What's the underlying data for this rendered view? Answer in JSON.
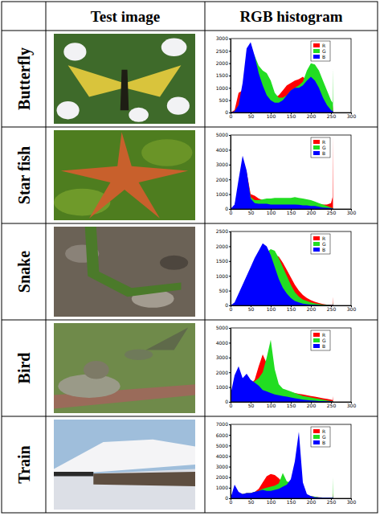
{
  "table": {
    "columns": [
      "Test image",
      "RGB histogram"
    ],
    "rows": [
      "Butterfly",
      "Star fish",
      "Snake",
      "Bird",
      "Train"
    ]
  },
  "chart_data": [
    {
      "type": "area",
      "legend": "upper right",
      "x": [
        0,
        10,
        20,
        30,
        40,
        50,
        60,
        70,
        80,
        90,
        100,
        110,
        120,
        130,
        140,
        150,
        160,
        170,
        180,
        190,
        200,
        210,
        220,
        230,
        240,
        250,
        254,
        255
      ],
      "xlim": [
        0,
        300
      ],
      "xticks": [
        0,
        50,
        100,
        150,
        200,
        250,
        300
      ],
      "ylim": [
        0,
        3000
      ],
      "yticks": [
        0,
        500,
        1000,
        1500,
        2000,
        2500,
        3000
      ],
      "series": [
        {
          "name": "R",
          "color": "#ff0000",
          "values": [
            0,
            100,
            800,
            900,
            1600,
            2200,
            1800,
            1500,
            1200,
            900,
            700,
            600,
            700,
            900,
            1100,
            1200,
            1300,
            1350,
            1450,
            1300,
            1100,
            900,
            700,
            500,
            350,
            200,
            150,
            300
          ]
        },
        {
          "name": "G",
          "color": "#22dd22",
          "values": [
            0,
            50,
            300,
            900,
            2200,
            2600,
            2300,
            1900,
            1700,
            1600,
            1300,
            800,
            600,
            600,
            700,
            900,
            1000,
            1100,
            1250,
            1700,
            2000,
            1950,
            1700,
            1300,
            900,
            500,
            400,
            1800
          ]
        },
        {
          "name": "B",
          "color": "#0000ff",
          "values": [
            0,
            50,
            300,
            1200,
            2600,
            2850,
            2300,
            1600,
            1100,
            700,
            500,
            400,
            400,
            500,
            700,
            900,
            1000,
            1000,
            1100,
            1300,
            1450,
            1300,
            1000,
            600,
            300,
            100,
            50,
            100
          ]
        }
      ]
    },
    {
      "type": "area",
      "legend": "upper right",
      "x": [
        0,
        10,
        20,
        30,
        40,
        50,
        60,
        70,
        80,
        90,
        100,
        110,
        120,
        130,
        140,
        150,
        160,
        170,
        180,
        190,
        200,
        210,
        220,
        230,
        240,
        250,
        254,
        255
      ],
      "xlim": [
        0,
        300
      ],
      "xticks": [
        0,
        50,
        100,
        150,
        200,
        250,
        300
      ],
      "ylim": [
        0,
        5000
      ],
      "yticks": [
        0,
        1000,
        2000,
        3000,
        4000,
        5000
      ],
      "series": [
        {
          "name": "R",
          "color": "#ff0000",
          "values": [
            0,
            200,
            1500,
            3000,
            2500,
            1000,
            900,
            700,
            600,
            500,
            450,
            450,
            450,
            450,
            450,
            450,
            450,
            450,
            450,
            400,
            400,
            350,
            300,
            300,
            300,
            400,
            800,
            5000
          ]
        },
        {
          "name": "G",
          "color": "#22dd22",
          "values": [
            0,
            200,
            1500,
            3200,
            2400,
            800,
            600,
            600,
            650,
            700,
            700,
            750,
            750,
            750,
            750,
            750,
            800,
            750,
            700,
            650,
            600,
            500,
            400,
            300,
            200,
            100,
            50,
            100
          ]
        },
        {
          "name": "B",
          "color": "#0000ff",
          "values": [
            0,
            300,
            2000,
            3600,
            2600,
            700,
            400,
            350,
            350,
            350,
            300,
            300,
            300,
            300,
            300,
            300,
            300,
            280,
            250,
            250,
            200,
            200,
            150,
            100,
            80,
            50,
            30,
            50
          ]
        }
      ]
    },
    {
      "type": "area",
      "legend": "upper right",
      "x": [
        0,
        10,
        20,
        30,
        40,
        50,
        60,
        70,
        80,
        90,
        100,
        110,
        120,
        130,
        140,
        150,
        160,
        170,
        180,
        190,
        200,
        210,
        220,
        230,
        240,
        250,
        254,
        255
      ],
      "xlim": [
        0,
        300
      ],
      "xticks": [
        0,
        50,
        100,
        150,
        200,
        250,
        300
      ],
      "ylim": [
        0,
        2500
      ],
      "yticks": [
        0,
        500,
        1000,
        1500,
        2000,
        2500
      ],
      "series": [
        {
          "name": "R",
          "color": "#ff0000",
          "values": [
            0,
            40,
            150,
            300,
            500,
            700,
            900,
            1100,
            1300,
            1500,
            1650,
            1700,
            1650,
            1450,
            1200,
            950,
            700,
            500,
            350,
            250,
            180,
            120,
            80,
            50,
            30,
            20,
            20,
            300
          ]
        },
        {
          "name": "G",
          "color": "#22dd22",
          "values": [
            0,
            50,
            200,
            400,
            650,
            900,
            1150,
            1400,
            1650,
            1800,
            1900,
            1850,
            1600,
            1300,
            1000,
            700,
            450,
            300,
            200,
            150,
            100,
            70,
            50,
            30,
            20,
            10,
            10,
            100
          ]
        },
        {
          "name": "B",
          "color": "#0000ff",
          "values": [
            0,
            100,
            400,
            700,
            1000,
            1300,
            1600,
            1850,
            2100,
            2000,
            1700,
            1300,
            900,
            600,
            400,
            250,
            150,
            100,
            60,
            40,
            30,
            20,
            10,
            10,
            5,
            5,
            5,
            50
          ]
        }
      ]
    },
    {
      "type": "area",
      "legend": "upper right",
      "x": [
        0,
        10,
        20,
        30,
        40,
        50,
        60,
        70,
        80,
        90,
        100,
        110,
        120,
        130,
        140,
        150,
        160,
        170,
        180,
        190,
        200,
        210,
        220,
        230,
        240,
        250,
        254,
        255
      ],
      "xlim": [
        0,
        300
      ],
      "xticks": [
        0,
        50,
        100,
        150,
        200,
        250,
        300
      ],
      "ylim": [
        0,
        5000
      ],
      "yticks": [
        0,
        1000,
        2000,
        3000,
        4000,
        5000
      ],
      "series": [
        {
          "name": "R",
          "color": "#ff0000",
          "values": [
            200,
            500,
            700,
            800,
            1000,
            1200,
            1500,
            2400,
            3200,
            2600,
            1800,
            1300,
            1000,
            800,
            700,
            650,
            600,
            550,
            500,
            450,
            400,
            350,
            300,
            250,
            200,
            150,
            120,
            400
          ]
        },
        {
          "name": "G",
          "color": "#22dd22",
          "values": [
            200,
            600,
            900,
            900,
            1100,
            1200,
            1400,
            1600,
            2000,
            3000,
            4200,
            2200,
            1200,
            900,
            800,
            700,
            600,
            500,
            400,
            350,
            300,
            250,
            200,
            150,
            100,
            60,
            40,
            100
          ]
        },
        {
          "name": "B",
          "color": "#0000ff",
          "values": [
            500,
            1800,
            2400,
            1600,
            1900,
            1500,
            1300,
            1100,
            800,
            700,
            600,
            500,
            450,
            400,
            350,
            300,
            250,
            200,
            150,
            120,
            100,
            80,
            60,
            50,
            40,
            30,
            20,
            50
          ]
        }
      ]
    },
    {
      "type": "area",
      "legend": "upper right",
      "x": [
        0,
        10,
        20,
        30,
        40,
        50,
        60,
        70,
        80,
        90,
        100,
        110,
        120,
        130,
        140,
        150,
        160,
        170,
        180,
        190,
        200,
        210,
        220,
        230,
        240,
        250,
        254,
        255
      ],
      "xlim": [
        0,
        300
      ],
      "xticks": [
        0,
        50,
        100,
        150,
        200,
        250,
        300
      ],
      "ylim": [
        0,
        7000
      ],
      "yticks": [
        0,
        1000,
        2000,
        3000,
        4000,
        5000,
        6000,
        7000
      ],
      "series": [
        {
          "name": "R",
          "color": "#ff0000",
          "values": [
            0,
            900,
            500,
            400,
            500,
            500,
            600,
            900,
            1500,
            2100,
            2300,
            2200,
            1900,
            1500,
            1300,
            1200,
            1000,
            700,
            400,
            250,
            200,
            150,
            100,
            80,
            60,
            50,
            50,
            500
          ]
        },
        {
          "name": "G",
          "color": "#22dd22",
          "values": [
            0,
            1000,
            500,
            400,
            500,
            500,
            600,
            700,
            900,
            1000,
            1100,
            1200,
            1400,
            2400,
            1600,
            1500,
            1200,
            900,
            500,
            300,
            200,
            150,
            100,
            80,
            60,
            50,
            100,
            2000
          ]
        },
        {
          "name": "B",
          "color": "#0000ff",
          "values": [
            0,
            1300,
            600,
            400,
            500,
            500,
            600,
            700,
            800,
            700,
            700,
            800,
            900,
            1100,
            1300,
            1800,
            3500,
            6300,
            1500,
            400,
            200,
            100,
            80,
            60,
            50,
            50,
            40,
            200
          ]
        }
      ]
    }
  ]
}
